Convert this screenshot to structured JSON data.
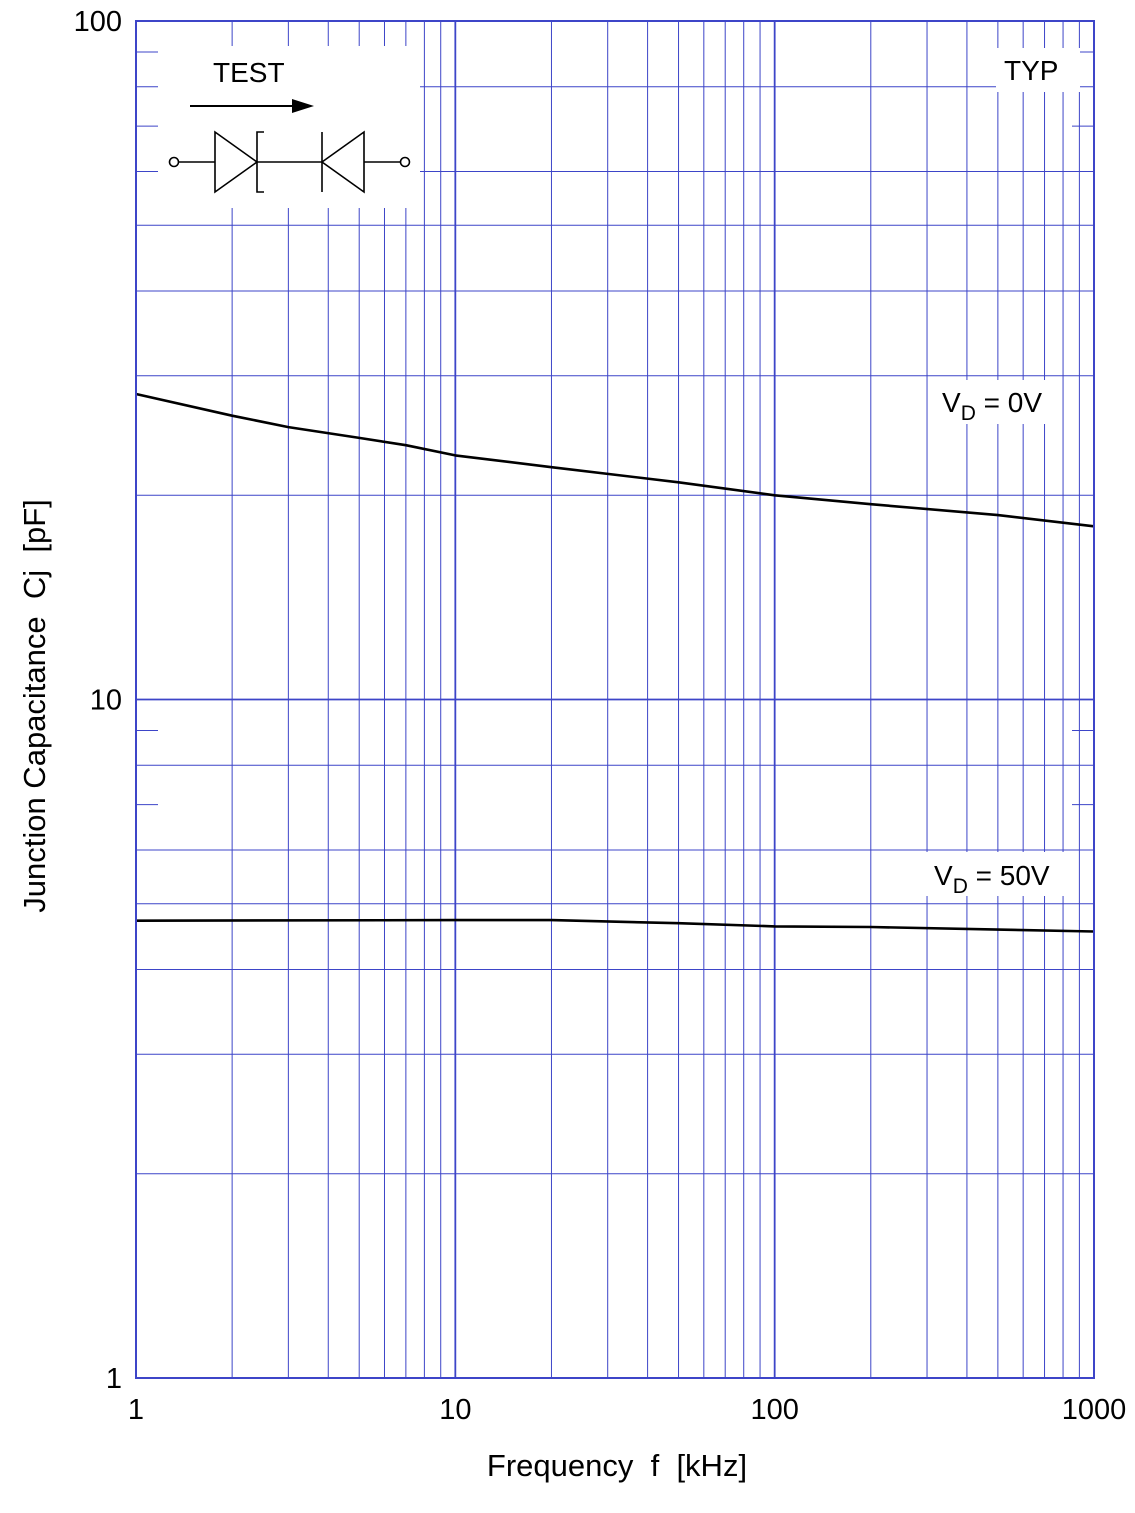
{
  "chart_data": {
    "type": "line",
    "title": "",
    "xlabel": "Frequency  f  [kHz]",
    "ylabel": "Junction Capacitance  Cj  [pF]",
    "x_scale": "log",
    "y_scale": "log",
    "xlim": [
      1,
      1000
    ],
    "ylim": [
      1,
      100
    ],
    "x_ticks": [
      "1",
      "10",
      "100",
      "1000"
    ],
    "y_ticks": [
      "1",
      "10",
      "100"
    ],
    "grid": true,
    "series": [
      {
        "name": "V_D = 0V",
        "label_main": "V",
        "label_sub": "D",
        "label_rest": " = 0V",
        "x": [
          1,
          2,
          3,
          5,
          7,
          10,
          20,
          50,
          100,
          200,
          500,
          1000
        ],
        "y": [
          28.2,
          26.2,
          25.2,
          24.3,
          23.7,
          22.9,
          22.0,
          20.9,
          20.0,
          19.4,
          18.7,
          18.0
        ]
      },
      {
        "name": "V_D = 50V",
        "label_main": "V",
        "label_sub": "D",
        "label_rest": " = 50V",
        "x": [
          1,
          10,
          20,
          50,
          100,
          200,
          500,
          1000
        ],
        "y": [
          4.72,
          4.73,
          4.73,
          4.68,
          4.63,
          4.62,
          4.58,
          4.55
        ]
      }
    ],
    "annotations": {
      "condition": "TYP",
      "test_label": "TEST"
    },
    "colors": {
      "grid": "#3d45c8",
      "curve": "#000000",
      "frame": "#3d45c8"
    }
  }
}
